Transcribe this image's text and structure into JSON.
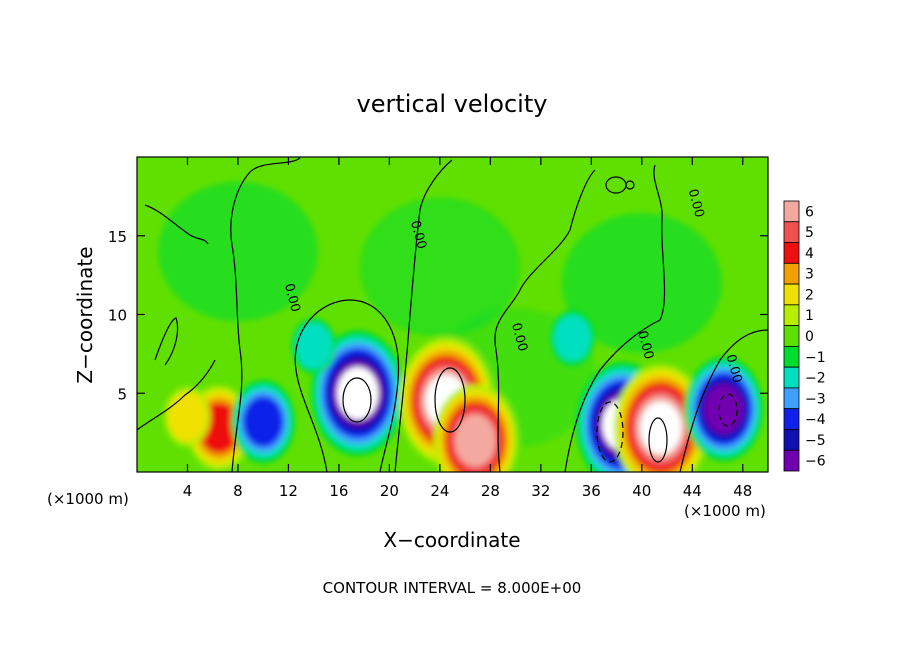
{
  "chart_data": {
    "type": "heatmap",
    "title": "vertical velocity",
    "xlabel": "X−coordinate",
    "ylabel": "Z−coordinate",
    "x_unit_left": "(×1000 m)",
    "x_unit_right": "(×1000 m)",
    "footer": "CONTOUR INTERVAL = 8.000E+00",
    "xlim": [
      0,
      50
    ],
    "ylim": [
      0,
      20
    ],
    "x_ticks": [
      "4",
      "8",
      "12",
      "16",
      "20",
      "24",
      "28",
      "32",
      "36",
      "40",
      "44",
      "48"
    ],
    "x_tick_values": [
      4,
      8,
      12,
      16,
      20,
      24,
      28,
      32,
      36,
      40,
      44,
      48
    ],
    "y_ticks": [
      "5",
      "10",
      "15"
    ],
    "y_tick_values": [
      5,
      10,
      15
    ],
    "contour_labels": [
      "0.00",
      "0.00",
      "0.00",
      "0.00",
      "0.00",
      "0.00"
    ],
    "colorbar": {
      "labels": [
        "6",
        "5",
        "4",
        "3",
        "2",
        "1",
        "0",
        "−1",
        "−2",
        "−3",
        "−4",
        "−5",
        "−6"
      ],
      "colors": [
        "#f4a9a0",
        "#f05050",
        "#ee1010",
        "#f0a000",
        "#f0e000",
        "#b8ee00",
        "#60e000",
        "#00dc30",
        "#00e0c0",
        "#40a0ff",
        "#1020e8",
        "#1010b0",
        "#7000b0"
      ]
    },
    "field_features": [
      {
        "x": 6.5,
        "z": 2.8,
        "w": 4
      },
      {
        "x": 4,
        "z": 3.5,
        "w": 2.2
      },
      {
        "x": 10,
        "z": 3.2,
        "w": -4
      },
      {
        "x": 17,
        "z": 5.5,
        "w": -5.5
      },
      {
        "x": 17.5,
        "z": 5,
        "w": -7
      },
      {
        "x": 24.5,
        "z": 4.5,
        "w": 7
      },
      {
        "x": 26.8,
        "z": 2,
        "w": 6
      },
      {
        "x": 38.5,
        "z": 3,
        "w": -7
      },
      {
        "x": 41.5,
        "z": 2.8,
        "w": 7
      },
      {
        "x": 46.5,
        "z": 4,
        "w": -5.5
      },
      {
        "x": 14,
        "z": 8,
        "w": -2
      },
      {
        "x": 34.5,
        "z": 8.5,
        "w": -2
      }
    ]
  }
}
